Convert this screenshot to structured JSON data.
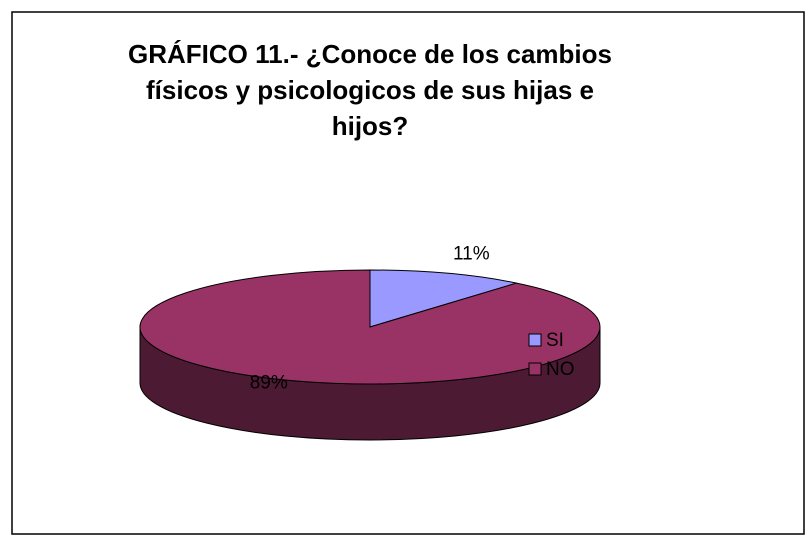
{
  "chart_data": {
    "type": "pie",
    "title": "GRÁFICO 11.- ¿Conoce de los cambios físicos y psicologicos de sus hijas e hijos?",
    "categories": [
      "SI",
      "NO"
    ],
    "values": [
      11,
      89
    ],
    "value_labels": [
      "11%",
      "89%"
    ],
    "colors": [
      "#9999ff",
      "#993366"
    ],
    "legend": "right"
  }
}
